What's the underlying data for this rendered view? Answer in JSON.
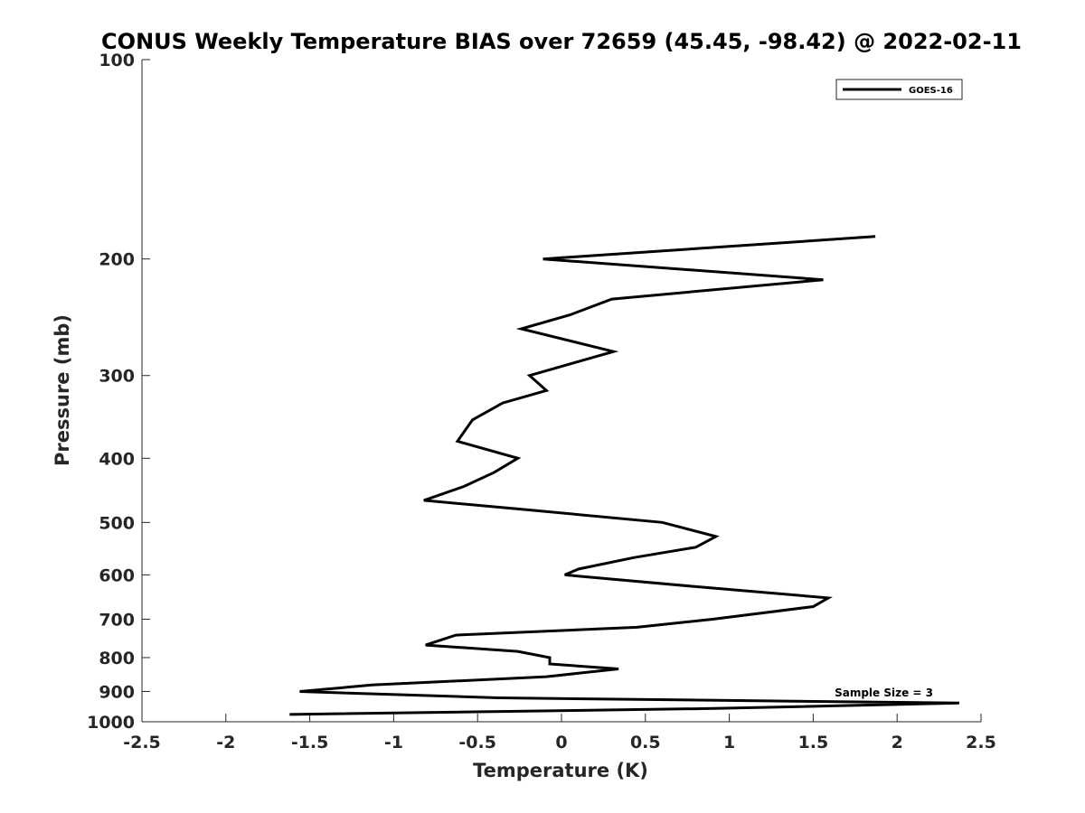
{
  "chart_data": {
    "type": "line",
    "title": "CONUS Weekly Temperature BIAS over 72659 (45.45, -98.42) @ 2022-02-11",
    "xlabel": "Temperature (K)",
    "ylabel": "Pressure (mb)",
    "xlim": [
      -2.5,
      2.5
    ],
    "ylim": [
      100,
      1000
    ],
    "y_scale": "log",
    "y_reversed": true,
    "xticks": [
      -2.5,
      -2,
      -1.5,
      -1,
      -0.5,
      0,
      0.5,
      1,
      1.5,
      2,
      2.5
    ],
    "xtick_labels": [
      "-2.5",
      "-2",
      "-1.5",
      "-1",
      "-0.5",
      "0",
      "0.5",
      "1",
      "1.5",
      "2",
      "2.5"
    ],
    "yticks": [
      100,
      200,
      300,
      400,
      500,
      600,
      700,
      800,
      900,
      1000
    ],
    "ytick_labels": [
      "100",
      "200",
      "300",
      "400",
      "500",
      "600",
      "700",
      "800",
      "900",
      "1000"
    ],
    "grid": false,
    "legend_position": "top-right",
    "annotation": "Sample Size = 3",
    "series": [
      {
        "name": "GOES-16",
        "color": "#000000",
        "points": [
          {
            "x": 1.87,
            "p": 185
          },
          {
            "x": -0.11,
            "p": 200
          },
          {
            "x": 1.56,
            "p": 215
          },
          {
            "x": 0.3,
            "p": 230
          },
          {
            "x": 0.05,
            "p": 243
          },
          {
            "x": -0.24,
            "p": 255
          },
          {
            "x": 0.31,
            "p": 276
          },
          {
            "x": -0.19,
            "p": 300
          },
          {
            "x": -0.09,
            "p": 316
          },
          {
            "x": -0.35,
            "p": 330
          },
          {
            "x": -0.53,
            "p": 350
          },
          {
            "x": -0.62,
            "p": 377
          },
          {
            "x": -0.26,
            "p": 400
          },
          {
            "x": -0.4,
            "p": 420
          },
          {
            "x": -0.58,
            "p": 441
          },
          {
            "x": -0.82,
            "p": 463
          },
          {
            "x": -0.26,
            "p": 477
          },
          {
            "x": 0.6,
            "p": 500
          },
          {
            "x": 0.92,
            "p": 525
          },
          {
            "x": 0.8,
            "p": 545
          },
          {
            "x": 0.43,
            "p": 565
          },
          {
            "x": 0.1,
            "p": 588
          },
          {
            "x": 0.02,
            "p": 600
          },
          {
            "x": 0.8,
            "p": 625
          },
          {
            "x": 1.59,
            "p": 650
          },
          {
            "x": 1.5,
            "p": 670
          },
          {
            "x": 0.9,
            "p": 700
          },
          {
            "x": 0.45,
            "p": 720
          },
          {
            "x": -0.63,
            "p": 740
          },
          {
            "x": -0.81,
            "p": 766
          },
          {
            "x": -0.26,
            "p": 783
          },
          {
            "x": -0.07,
            "p": 800
          },
          {
            "x": -0.07,
            "p": 818
          },
          {
            "x": 0.34,
            "p": 832
          },
          {
            "x": -0.09,
            "p": 855
          },
          {
            "x": -1.13,
            "p": 880
          },
          {
            "x": -1.56,
            "p": 900
          },
          {
            "x": -0.38,
            "p": 920
          },
          {
            "x": 2.37,
            "p": 937
          },
          {
            "x": 0.91,
            "p": 955
          },
          {
            "x": -1.62,
            "p": 975
          }
        ]
      }
    ]
  }
}
